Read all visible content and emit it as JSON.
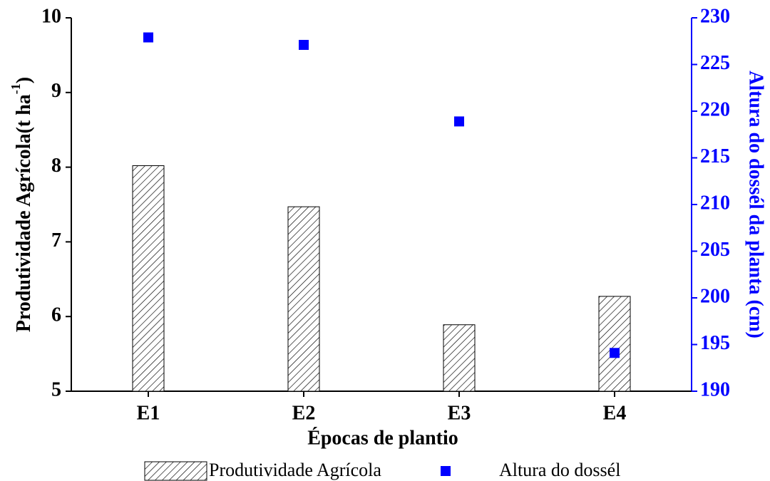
{
  "chart_data": {
    "type": "bar",
    "xlabel": "Épocas de plantio",
    "ylabel": [
      "Produtividade Agrícola(t ha",
      "-1",
      ")"
    ],
    "y2label": "Altura do dossél da planta (cm)",
    "categories": [
      "E1",
      "E2",
      "E3",
      "E4"
    ],
    "series": [
      {
        "name": "Produtividade Agrícola",
        "type": "bar",
        "color": "#000000",
        "values": [
          8.02,
          7.47,
          5.89,
          6.27
        ]
      },
      {
        "name": "Altura do dossél",
        "type": "scatter",
        "axis": "y2",
        "color": "#0000ff",
        "values": [
          227.9,
          227.1,
          218.9,
          194.1
        ]
      }
    ],
    "ylim": [
      5,
      10
    ],
    "yticks": [
      5,
      6,
      7,
      8,
      9,
      10
    ],
    "y2lim": [
      190,
      230
    ],
    "y2ticks": [
      190,
      195,
      200,
      205,
      210,
      215,
      220,
      225,
      230
    ],
    "legend": "bottom"
  }
}
